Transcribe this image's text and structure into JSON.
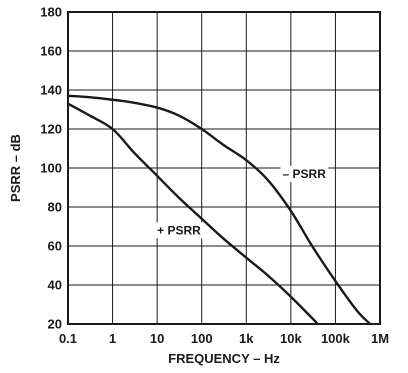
{
  "chart_data": {
    "type": "line",
    "title": "",
    "xlabel": "FREQUENCY – Hz",
    "ylabel": "PSRR – dB",
    "xscale": "log",
    "xlim": [
      0.1,
      1000000
    ],
    "ylim": [
      20,
      180
    ],
    "grid": true,
    "x_ticks": [
      0.1,
      1,
      10,
      100,
      1000,
      10000,
      100000,
      1000000
    ],
    "x_tick_labels": [
      "0.1",
      "1",
      "10",
      "100",
      "1k",
      "10k",
      "100k",
      "1M"
    ],
    "y_ticks": [
      20,
      40,
      60,
      80,
      100,
      120,
      140,
      160,
      180
    ],
    "y_tick_labels": [
      "20",
      "40",
      "60",
      "80",
      "100",
      "120",
      "140",
      "160",
      "180"
    ],
    "colors": {
      "series": "#1a1a1a",
      "grid": "#1a1a1a"
    },
    "series": [
      {
        "name": "– PSRR",
        "points": [
          [
            0.1,
            137
          ],
          [
            0.3,
            136.3
          ],
          [
            1,
            135
          ],
          [
            3,
            133.5
          ],
          [
            10,
            131
          ],
          [
            30,
            127
          ],
          [
            100,
            120
          ],
          [
            300,
            112
          ],
          [
            1000,
            104
          ],
          [
            3000,
            94
          ],
          [
            10000,
            78
          ],
          [
            30000,
            60
          ],
          [
            100000,
            42
          ],
          [
            300000,
            27
          ],
          [
            600000,
            20
          ]
        ]
      },
      {
        "name": "+ PSRR",
        "points": [
          [
            0.1,
            133
          ],
          [
            0.3,
            127
          ],
          [
            1,
            120
          ],
          [
            3,
            108
          ],
          [
            10,
            96
          ],
          [
            30,
            85
          ],
          [
            100,
            74
          ],
          [
            300,
            64
          ],
          [
            1000,
            54
          ],
          [
            3000,
            45
          ],
          [
            10000,
            34
          ],
          [
            30000,
            23
          ],
          [
            40000,
            20
          ]
        ]
      }
    ]
  }
}
